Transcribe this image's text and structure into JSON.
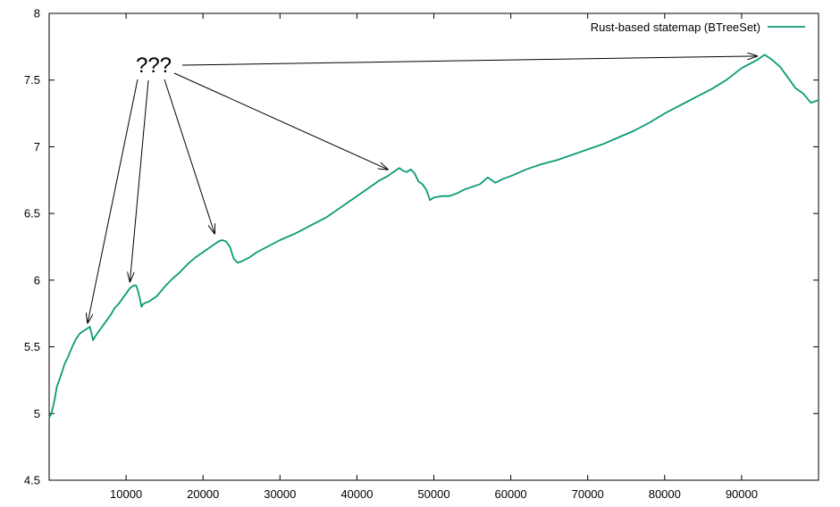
{
  "chart_data": {
    "type": "line",
    "title": "",
    "xlabel": "",
    "ylabel": "",
    "xlim": [
      0,
      100000
    ],
    "ylim": [
      4.5,
      8
    ],
    "grid": false,
    "legend_position": "top-right",
    "x_ticks": [
      10000,
      20000,
      30000,
      40000,
      50000,
      60000,
      70000,
      80000,
      90000
    ],
    "x_tick_labels": [
      "10000",
      "20000",
      "30000",
      "40000",
      "50000",
      "60000",
      "70000",
      "80000",
      "90000"
    ],
    "y_ticks": [
      4.5,
      5,
      5.5,
      6,
      6.5,
      7,
      7.5,
      8
    ],
    "y_tick_labels": [
      "4.5",
      "5",
      "5.5",
      "6",
      "6.5",
      "7",
      "7.5",
      "8"
    ],
    "series": [
      {
        "name": "Rust-based statemap (BTreeSet)",
        "color": "#0a9b76",
        "x": [
          0,
          300,
          700,
          1000,
          1500,
          2000,
          2500,
          3000,
          3500,
          4000,
          4500,
          5000,
          5300,
          5500,
          5700,
          6000,
          6500,
          7000,
          7500,
          8000,
          8500,
          9000,
          9500,
          10000,
          10500,
          11000,
          11300,
          11500,
          11800,
          12000,
          12200,
          12500,
          13000,
          13500,
          14000,
          15000,
          16000,
          17000,
          18000,
          19000,
          20000,
          21000,
          22000,
          22500,
          23000,
          23500,
          24000,
          24500,
          25000,
          26000,
          27000,
          28000,
          29000,
          30000,
          32000,
          34000,
          36000,
          38000,
          40000,
          41000,
          42000,
          43000,
          44000,
          45000,
          45500,
          46000,
          46500,
          47000,
          47500,
          48000,
          48500,
          49000,
          49500,
          50000,
          51000,
          52000,
          53000,
          54000,
          55000,
          56000,
          57000,
          58000,
          59000,
          60000,
          62000,
          64000,
          66000,
          68000,
          70000,
          72000,
          74000,
          76000,
          78000,
          80000,
          82000,
          84000,
          86000,
          88000,
          90000,
          91000,
          92000,
          93000,
          94000,
          95000,
          96000,
          97000,
          98000,
          99000,
          100000
        ],
        "y": [
          4.97,
          5.0,
          5.1,
          5.2,
          5.28,
          5.37,
          5.43,
          5.5,
          5.56,
          5.6,
          5.62,
          5.64,
          5.65,
          5.6,
          5.55,
          5.58,
          5.62,
          5.66,
          5.7,
          5.74,
          5.79,
          5.82,
          5.86,
          5.9,
          5.94,
          5.96,
          5.96,
          5.93,
          5.86,
          5.8,
          5.82,
          5.83,
          5.84,
          5.86,
          5.88,
          5.95,
          6.01,
          6.06,
          6.12,
          6.17,
          6.21,
          6.25,
          6.29,
          6.3,
          6.29,
          6.25,
          6.16,
          6.13,
          6.14,
          6.17,
          6.21,
          6.24,
          6.27,
          6.3,
          6.35,
          6.41,
          6.47,
          6.55,
          6.63,
          6.67,
          6.71,
          6.75,
          6.78,
          6.82,
          6.84,
          6.82,
          6.81,
          6.83,
          6.8,
          6.74,
          6.72,
          6.68,
          6.6,
          6.62,
          6.63,
          6.63,
          6.65,
          6.68,
          6.7,
          6.72,
          6.77,
          6.73,
          6.76,
          6.78,
          6.83,
          6.87,
          6.9,
          6.94,
          6.98,
          7.02,
          7.07,
          7.12,
          7.18,
          7.25,
          7.31,
          7.37,
          7.43,
          7.5,
          7.59,
          7.62,
          7.65,
          7.69,
          7.65,
          7.6,
          7.52,
          7.44,
          7.4,
          7.33,
          7.35
        ]
      }
    ],
    "annotations": [
      {
        "text": "???",
        "arrow_targets": [
          {
            "x": 5000,
            "y": 5.68
          },
          {
            "x": 10500,
            "y": 5.99
          },
          {
            "x": 21500,
            "y": 6.35
          },
          {
            "x": 44000,
            "y": 6.83
          },
          {
            "x": 92000,
            "y": 7.68
          }
        ]
      }
    ]
  }
}
